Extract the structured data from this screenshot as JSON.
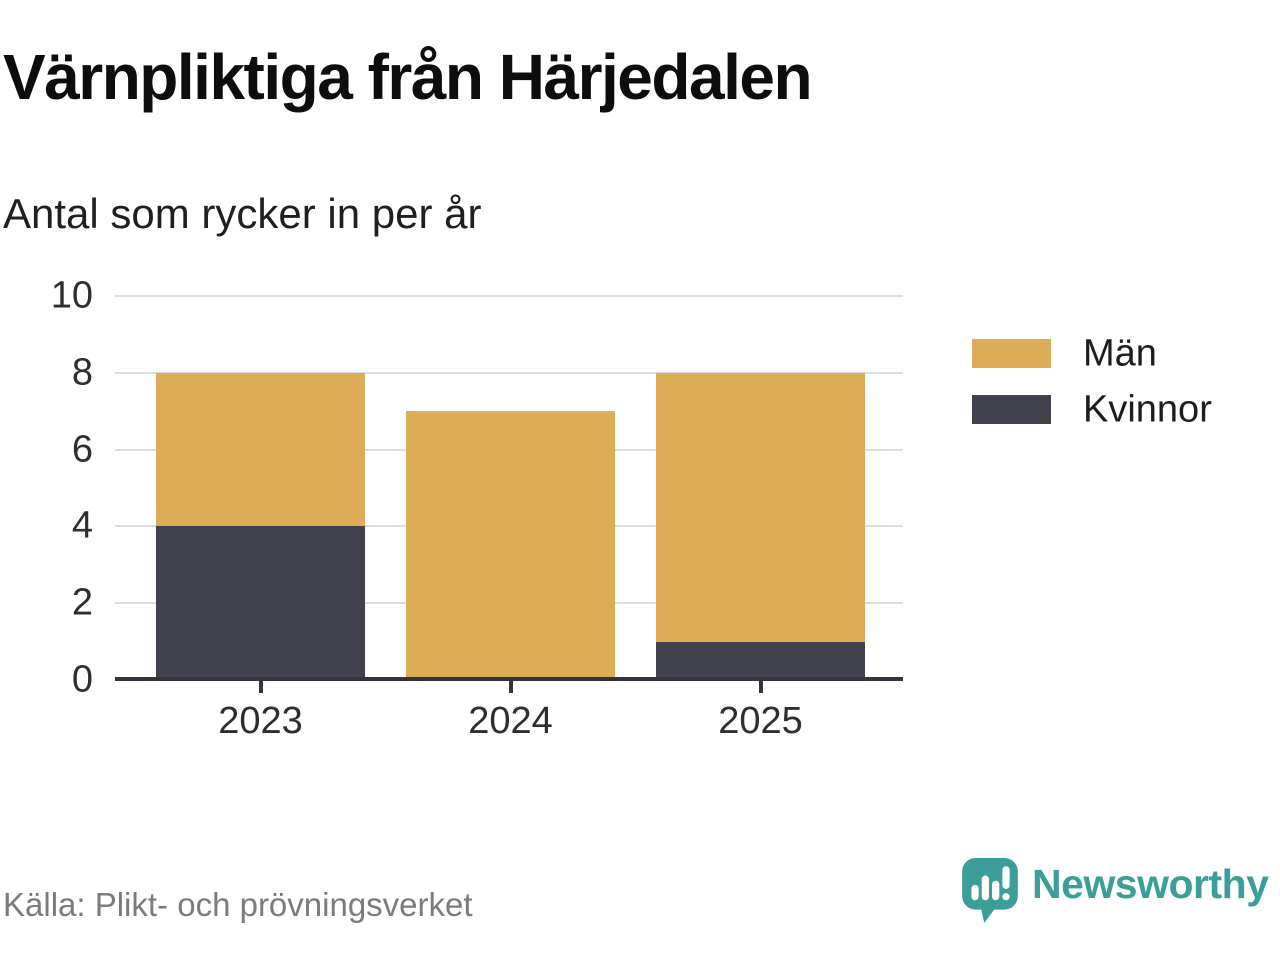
{
  "header": {
    "title": "Värnpliktiga från Härjedalen",
    "subtitle": "Antal som rycker in per år"
  },
  "chart_data": {
    "type": "bar",
    "stacked": true,
    "title": "Värnpliktiga från Härjedalen",
    "subtitle": "Antal som rycker in per år",
    "categories": [
      "2023",
      "2024",
      "2025"
    ],
    "series": [
      {
        "name": "Män",
        "color": "#DCAC57",
        "values": [
          4,
          7,
          7
        ]
      },
      {
        "name": "Kvinnor",
        "color": "#42414E",
        "values": [
          4,
          0,
          1
        ]
      }
    ],
    "stack_totals": [
      8,
      7,
      8
    ],
    "xlabel": "",
    "ylabel": "",
    "ylim": [
      0,
      10
    ],
    "yticks": [
      0,
      2,
      4,
      6,
      8,
      10
    ],
    "grid": true,
    "legend_position": "right"
  },
  "footer": {
    "source": "Källa: Plikt- och prövningsverket",
    "brand": "Newsworthy"
  },
  "colors": {
    "men": "#DCAC57",
    "women": "#42414E",
    "brand_teal": "#3C9E98",
    "gridline": "#DCDCDC",
    "axis": "#35343C",
    "text_dark": "#1D1D1D",
    "text_gray": "#7B7B7B"
  }
}
